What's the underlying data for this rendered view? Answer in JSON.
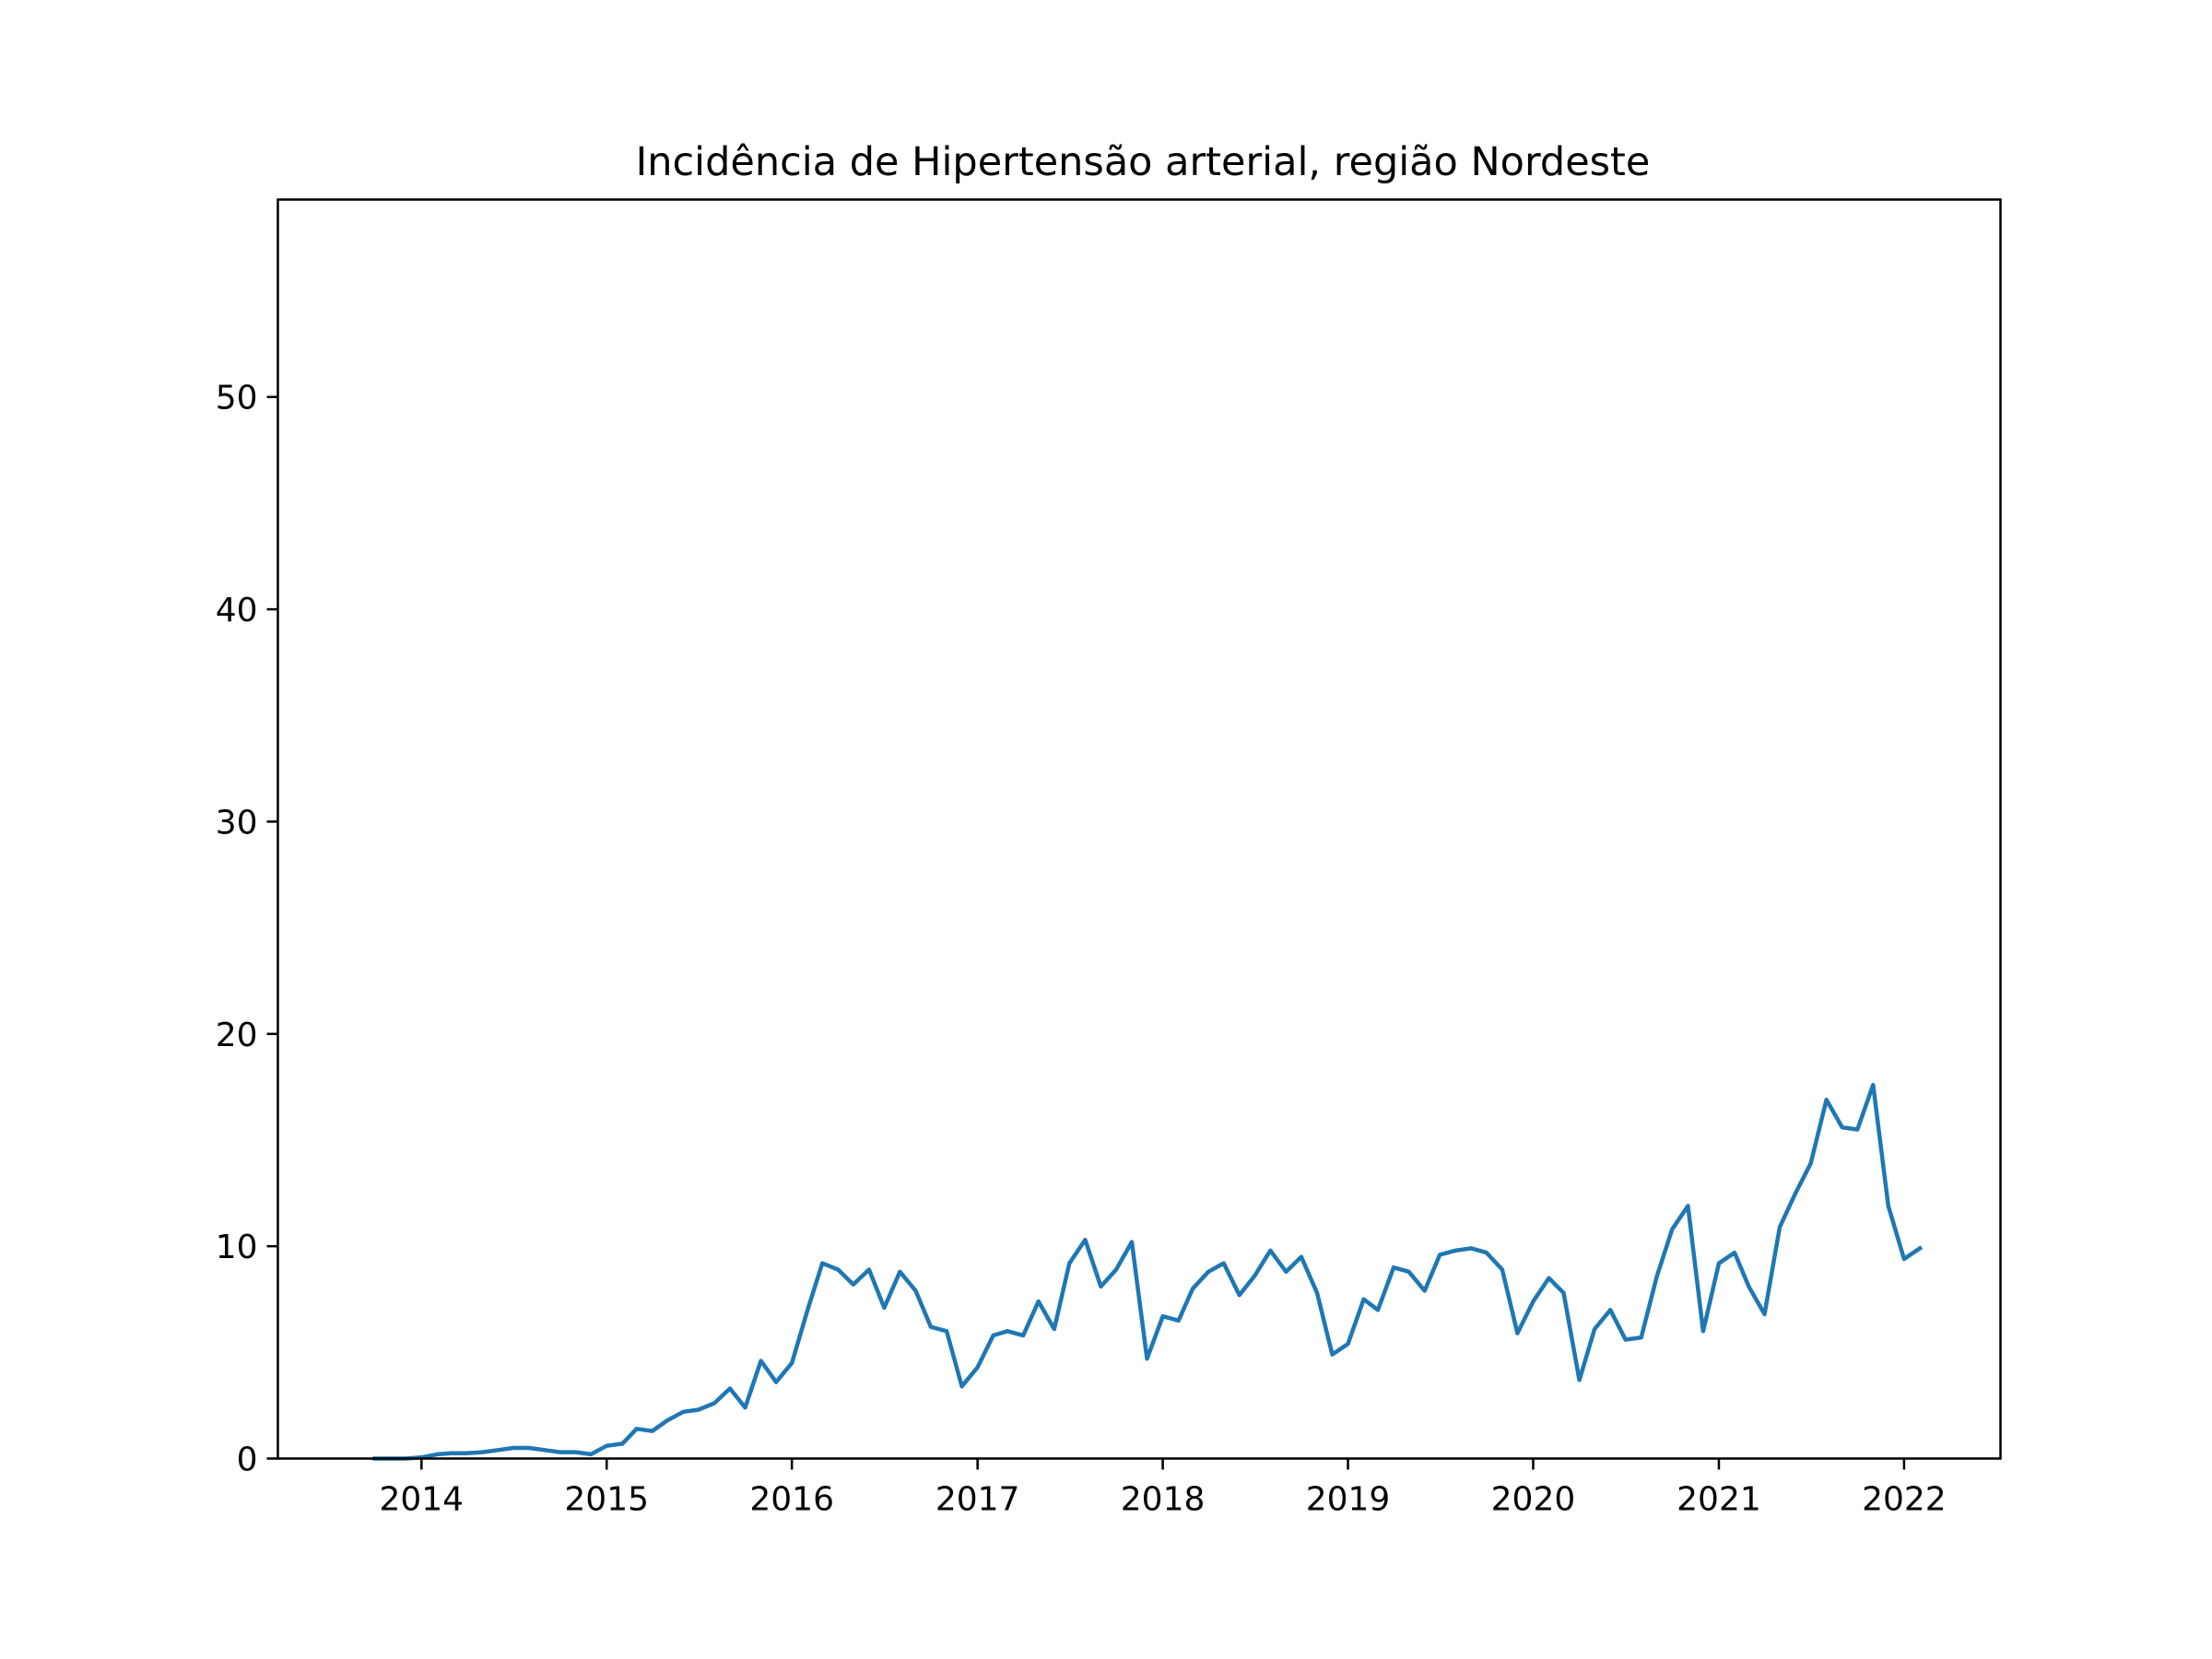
{
  "chart_data": {
    "type": "line",
    "title": "Incidência de Hipertensão arterial, região Nordeste",
    "xlabel": "",
    "ylabel": "",
    "x_ticks": [
      "2014",
      "2015",
      "2016",
      "2017",
      "2018",
      "2019",
      "2020",
      "2021",
      "2022"
    ],
    "y_ticks": [
      "0",
      "10",
      "20",
      "30",
      "40",
      "50"
    ],
    "xlim": [
      "2013-03-24",
      "2022-07-10"
    ],
    "ylim": [
      0,
      59.3
    ],
    "grid": false,
    "legend": "none",
    "series": [
      {
        "color": "#1f77b4",
        "x": [
          "2013-10-01",
          "2013-11-01",
          "2013-12-01",
          "2014-01-01",
          "2014-02-01",
          "2014-03-01",
          "2014-04-01",
          "2014-05-01",
          "2014-06-01",
          "2014-07-01",
          "2014-08-01",
          "2014-09-01",
          "2014-10-01",
          "2014-11-01",
          "2014-12-01",
          "2015-01-01",
          "2015-02-01",
          "2015-03-01",
          "2015-04-01",
          "2015-05-01",
          "2015-06-01",
          "2015-07-01",
          "2015-08-01",
          "2015-09-01",
          "2015-10-01",
          "2015-11-01",
          "2015-12-01",
          "2016-01-01",
          "2016-02-01",
          "2016-03-01",
          "2016-04-01",
          "2016-05-01",
          "2016-06-01",
          "2016-07-01",
          "2016-08-01",
          "2016-09-01",
          "2016-10-01",
          "2016-11-01",
          "2016-12-01",
          "2017-01-01",
          "2017-02-01",
          "2017-03-01",
          "2017-04-01",
          "2017-05-01",
          "2017-06-01",
          "2017-07-01",
          "2017-08-01",
          "2017-09-01",
          "2017-10-01",
          "2017-11-01",
          "2017-12-01",
          "2018-01-01",
          "2018-02-01",
          "2018-03-01",
          "2018-04-01",
          "2018-05-01",
          "2018-06-01",
          "2018-07-01",
          "2018-08-01",
          "2018-09-01",
          "2018-10-01",
          "2018-11-01",
          "2018-12-01",
          "2019-01-01",
          "2019-02-01",
          "2019-03-01",
          "2019-04-01",
          "2019-05-01",
          "2019-06-01",
          "2019-07-01",
          "2019-08-01",
          "2019-09-01",
          "2019-10-01",
          "2019-11-01",
          "2019-12-01",
          "2020-01-01",
          "2020-02-01",
          "2020-03-01",
          "2020-04-01",
          "2020-05-01",
          "2020-06-01",
          "2020-07-01",
          "2020-08-01",
          "2020-09-01",
          "2020-10-01",
          "2020-11-01",
          "2020-12-01",
          "2021-01-01",
          "2021-02-01",
          "2021-03-01",
          "2021-04-01",
          "2021-05-01",
          "2021-06-01",
          "2021-07-01",
          "2021-08-01",
          "2021-09-01",
          "2021-10-01",
          "2021-11-01",
          "2021-12-01",
          "2022-01-01",
          "2022-02-01"
        ],
        "values": [
          0.0,
          0.0,
          0.0,
          0.05,
          0.2,
          0.25,
          0.25,
          0.3,
          0.4,
          0.5,
          0.5,
          0.4,
          0.3,
          0.3,
          0.2,
          0.6,
          0.7,
          1.4,
          1.3,
          1.8,
          2.2,
          2.3,
          2.6,
          3.3,
          2.4,
          4.6,
          3.6,
          4.5,
          7.0,
          9.2,
          8.9,
          8.2,
          8.9,
          7.1,
          8.8,
          7.9,
          6.2,
          6.0,
          3.4,
          4.3,
          5.8,
          6.0,
          5.8,
          7.4,
          6.1,
          9.2,
          10.3,
          8.1,
          8.9,
          10.2,
          4.7,
          6.7,
          6.5,
          8.0,
          8.8,
          9.2,
          7.7,
          8.6,
          9.8,
          8.8,
          9.5,
          7.8,
          4.9,
          5.4,
          7.5,
          7.0,
          9.0,
          8.8,
          7.9,
          9.6,
          9.8,
          9.9,
          9.7,
          8.9,
          5.9,
          7.4,
          8.5,
          7.8,
          3.7,
          6.1,
          7.0,
          5.6,
          5.7,
          8.6,
          10.8,
          11.9,
          6.0,
          9.2,
          9.7,
          8.1,
          6.8,
          10.9,
          12.5,
          13.9,
          16.9,
          15.6,
          15.5,
          17.6,
          11.9,
          9.4,
          9.9
        ]
      }
    ]
  }
}
